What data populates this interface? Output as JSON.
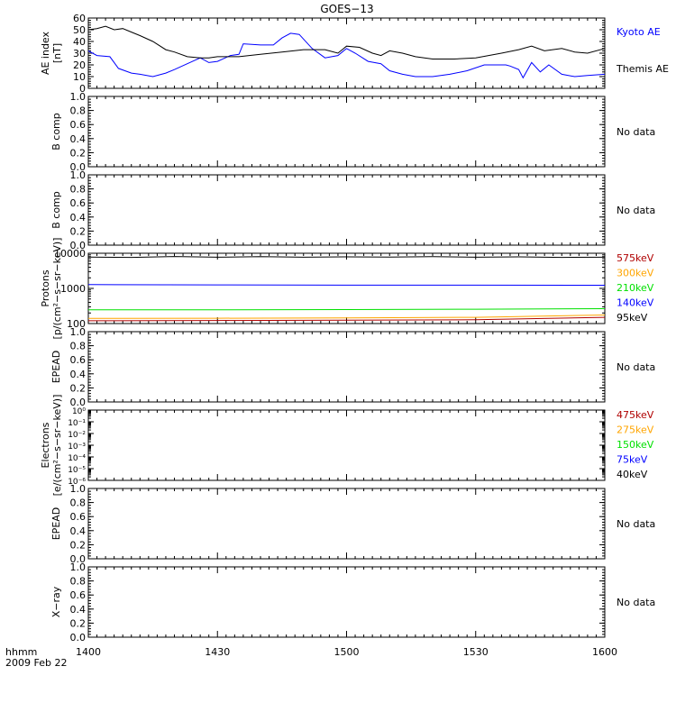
{
  "title": "GOES−13",
  "footer": {
    "time_label": "hhmm",
    "date_label": "2009 Feb 22"
  },
  "x_axis": {
    "ticks": [
      1400,
      1430,
      1500,
      1530,
      1600
    ],
    "range": [
      1400,
      1600
    ]
  },
  "no_data_text": "No data",
  "colors": {
    "black": "#000000",
    "blue": "#0000ff",
    "green": "#00e000",
    "orange": "#ffa500",
    "darkred": "#b00000"
  },
  "chart_data": [
    {
      "type": "line",
      "panel": "ae",
      "ylabel": [
        "AE index",
        "[nT]"
      ],
      "ylim": [
        0,
        60
      ],
      "yticks": [
        0,
        10,
        20,
        30,
        40,
        50,
        60
      ],
      "ytick_labels": [
        "0",
        "10",
        "20",
        "30",
        "40",
        "50",
        "60"
      ],
      "series": [
        {
          "name": "Kyoto AE",
          "color": "#0000ff",
          "x": [
            1400,
            1402,
            1405,
            1407,
            1410,
            1412,
            1415,
            1418,
            1420,
            1423,
            1426,
            1428,
            1430,
            1433,
            1435,
            1436,
            1440,
            1443,
            1445,
            1447,
            1449,
            1452,
            1455,
            1458,
            1500,
            1502,
            1505,
            1508,
            1510,
            1513,
            1516,
            1520,
            1524,
            1528,
            1532,
            1535,
            1537,
            1538,
            1540,
            1541,
            1543,
            1545,
            1547,
            1550,
            1553,
            1556,
            1560
          ],
          "values": [
            32,
            28,
            27,
            17,
            13,
            12,
            10,
            13,
            16,
            21,
            26,
            22,
            23,
            28,
            29,
            38,
            37,
            37,
            43,
            47,
            46,
            34,
            26,
            28,
            34,
            30,
            23,
            21,
            15,
            12,
            10,
            10,
            12,
            15,
            20,
            20,
            20,
            19,
            16,
            9,
            22,
            14,
            20,
            12,
            10,
            11,
            12
          ]
        },
        {
          "name": "Themis AE",
          "color": "#000000",
          "x": [
            1400,
            1402,
            1404,
            1406,
            1408,
            1410,
            1412,
            1415,
            1418,
            1420,
            1423,
            1426,
            1428,
            1430,
            1435,
            1440,
            1445,
            1450,
            1455,
            1458,
            1500,
            1503,
            1506,
            1508,
            1510,
            1513,
            1516,
            1520,
            1525,
            1530,
            1533,
            1536,
            1540,
            1543,
            1546,
            1550,
            1553,
            1556,
            1560
          ],
          "values": [
            50,
            51,
            53,
            50,
            51,
            48,
            45,
            40,
            33,
            31,
            27,
            26,
            26,
            27,
            27,
            29,
            31,
            33,
            33,
            30,
            36,
            35,
            30,
            28,
            32,
            30,
            27,
            25,
            25,
            26,
            28,
            30,
            33,
            36,
            32,
            34,
            31,
            30,
            34
          ]
        }
      ]
    },
    {
      "type": "line",
      "panel": "b1",
      "ylabel": [
        "B comp"
      ],
      "ylim": [
        0,
        1
      ],
      "yticks": [
        0,
        0.2,
        0.4,
        0.6,
        0.8,
        1.0
      ],
      "ytick_labels": [
        "0.0",
        "0.2",
        "0.4",
        "0.6",
        "0.8",
        "1.0"
      ],
      "series": []
    },
    {
      "type": "line",
      "panel": "b2",
      "ylabel": [
        "B comp"
      ],
      "ylim": [
        0,
        1
      ],
      "yticks": [
        0,
        0.2,
        0.4,
        0.6,
        0.8,
        1.0
      ],
      "ytick_labels": [
        "0.0",
        "0.2",
        "0.4",
        "0.6",
        "0.8",
        "1.0"
      ],
      "series": []
    },
    {
      "type": "line",
      "panel": "protons",
      "ylabel": [
        "Protons",
        "[p/(cm²−s−sr−keV)]"
      ],
      "log": true,
      "ylim": [
        100,
        10000
      ],
      "yticks": [
        100,
        1000,
        10000
      ],
      "ytick_labels": [
        "100",
        "1000",
        "10000"
      ],
      "series": [
        {
          "name": "575keV",
          "color": "#b00000",
          "x": [
            1400,
            1430,
            1500,
            1530,
            1600
          ],
          "values": [
            120,
            122,
            125,
            128,
            150
          ]
        },
        {
          "name": "300keV",
          "color": "#ffa500",
          "x": [
            1400,
            1430,
            1500,
            1530,
            1600
          ],
          "values": [
            140,
            142,
            145,
            150,
            175
          ]
        },
        {
          "name": "210keV",
          "color": "#00e000",
          "x": [
            1400,
            1430,
            1500,
            1530,
            1600
          ],
          "values": [
            245,
            245,
            250,
            255,
            265
          ]
        },
        {
          "name": "140keV",
          "color": "#0000ff",
          "x": [
            1400,
            1430,
            1500,
            1530,
            1600
          ],
          "values": [
            1280,
            1260,
            1240,
            1240,
            1230
          ]
        },
        {
          "name": "95keV",
          "color": "#000000",
          "x": [
            1400,
            1410,
            1420,
            1430,
            1440,
            1450,
            1500,
            1510,
            1520,
            1530,
            1540,
            1550,
            1600
          ],
          "values": [
            7800,
            7600,
            8100,
            7700,
            8000,
            7700,
            7900,
            7800,
            8000,
            7700,
            7900,
            7600,
            7700
          ]
        }
      ]
    },
    {
      "type": "line",
      "panel": "epead1",
      "ylabel": [
        "EPEAD"
      ],
      "ylim": [
        0,
        1
      ],
      "yticks": [
        0,
        0.2,
        0.4,
        0.6,
        0.8,
        1.0
      ],
      "ytick_labels": [
        "0.0",
        "0.2",
        "0.4",
        "0.6",
        "0.8",
        "1.0"
      ],
      "series": []
    },
    {
      "type": "line",
      "panel": "electrons",
      "ylabel": [
        "Electrons",
        "[e/(cm²−s−sr−keV)]"
      ],
      "log": true,
      "ylim": [
        1e-06,
        1
      ],
      "yticks": [
        1e-06,
        1e-05,
        0.0001,
        0.001,
        0.01,
        0.1,
        1
      ],
      "ytick_labels": [
        "10⁻⁶",
        "10⁻⁵",
        "10⁻⁴",
        "10⁻³",
        "10⁻²",
        "10⁻¹",
        "10⁰"
      ],
      "series": [
        {
          "name": "475keV",
          "color": "#b00000",
          "x": [],
          "values": []
        },
        {
          "name": "275keV",
          "color": "#ffa500",
          "x": [],
          "values": []
        },
        {
          "name": "150keV",
          "color": "#00e000",
          "x": [],
          "values": []
        },
        {
          "name": "75keV",
          "color": "#0000ff",
          "x": [],
          "values": []
        },
        {
          "name": "40keV",
          "color": "#000000",
          "x": [],
          "values": []
        }
      ]
    },
    {
      "type": "line",
      "panel": "epead2",
      "ylabel": [
        "EPEAD"
      ],
      "ylim": [
        0,
        1
      ],
      "yticks": [
        0,
        0.2,
        0.4,
        0.6,
        0.8,
        1.0
      ],
      "ytick_labels": [
        "0.0",
        "0.2",
        "0.4",
        "0.6",
        "0.8",
        "1.0"
      ],
      "series": []
    },
    {
      "type": "line",
      "panel": "xray",
      "ylabel": [
        "X−ray"
      ],
      "ylim": [
        0,
        1
      ],
      "yticks": [
        0,
        0.2,
        0.4,
        0.6,
        0.8,
        1.0
      ],
      "ytick_labels": [
        "0.0",
        "0.2",
        "0.4",
        "0.6",
        "0.8",
        "1.0"
      ],
      "series": []
    }
  ]
}
